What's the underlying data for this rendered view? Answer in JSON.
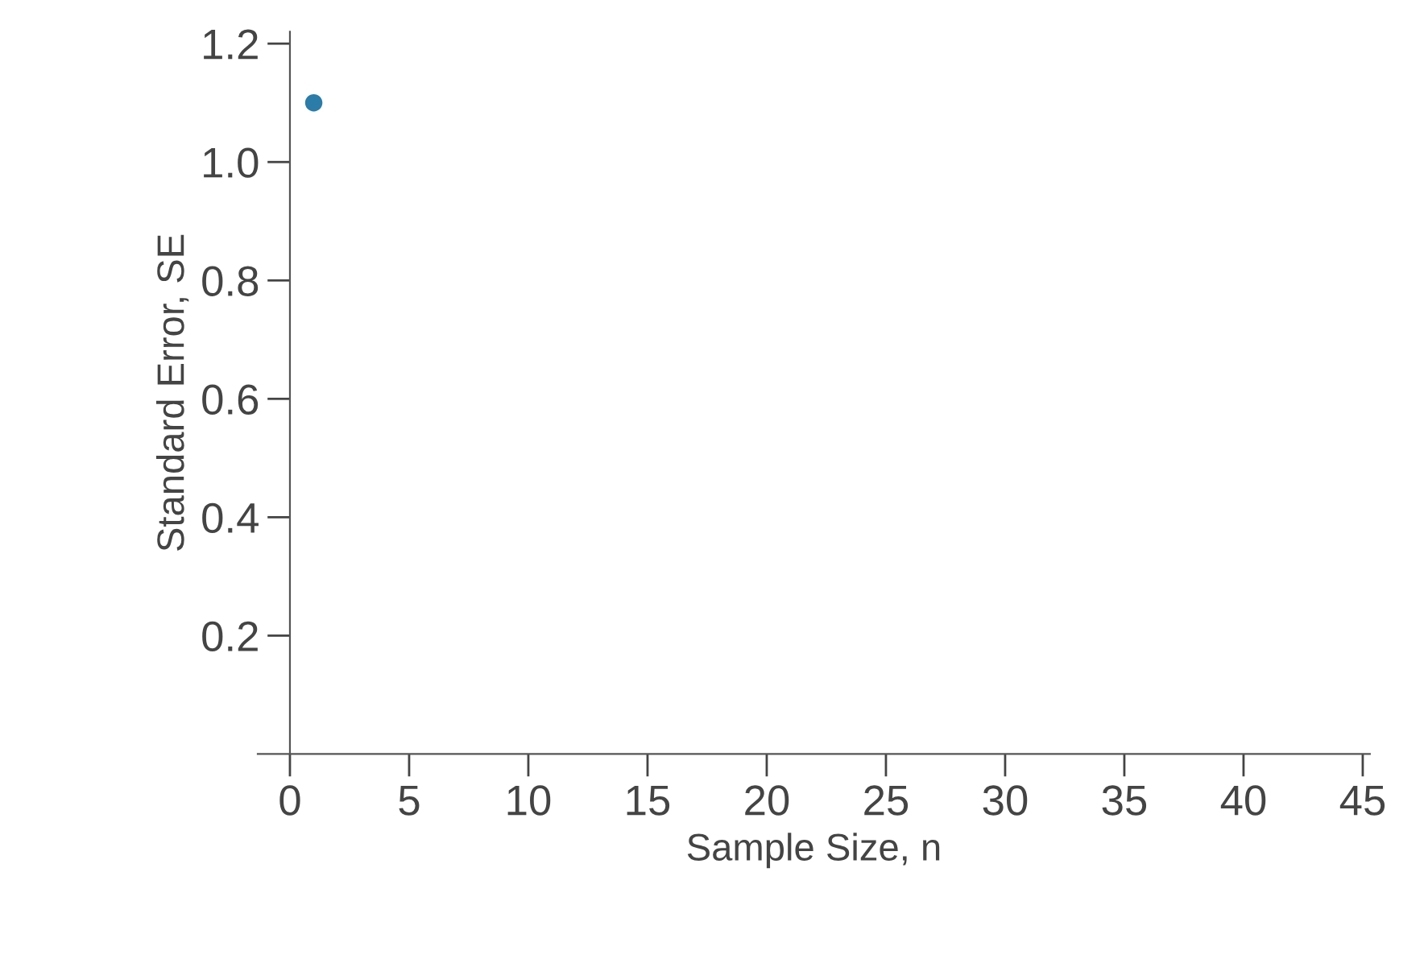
{
  "chart_data": {
    "type": "scatter",
    "xlabel": "Sample Size, n",
    "ylabel": "Standard Error, SE",
    "x": [
      1
    ],
    "values": [
      1.1
    ],
    "color": "#2b7ca8",
    "xlim": [
      -1.35,
      45.3
    ],
    "ylim": [
      0,
      1.22
    ],
    "xticks": [
      0,
      5,
      10,
      15,
      20,
      25,
      30,
      35,
      40,
      45
    ],
    "yticks": [
      0.2,
      0.4,
      0.6,
      0.8,
      {
        "value": 1.0,
        "label": "1.0"
      },
      1.2
    ],
    "marker": "circle",
    "grid": false,
    "legend": false
  }
}
